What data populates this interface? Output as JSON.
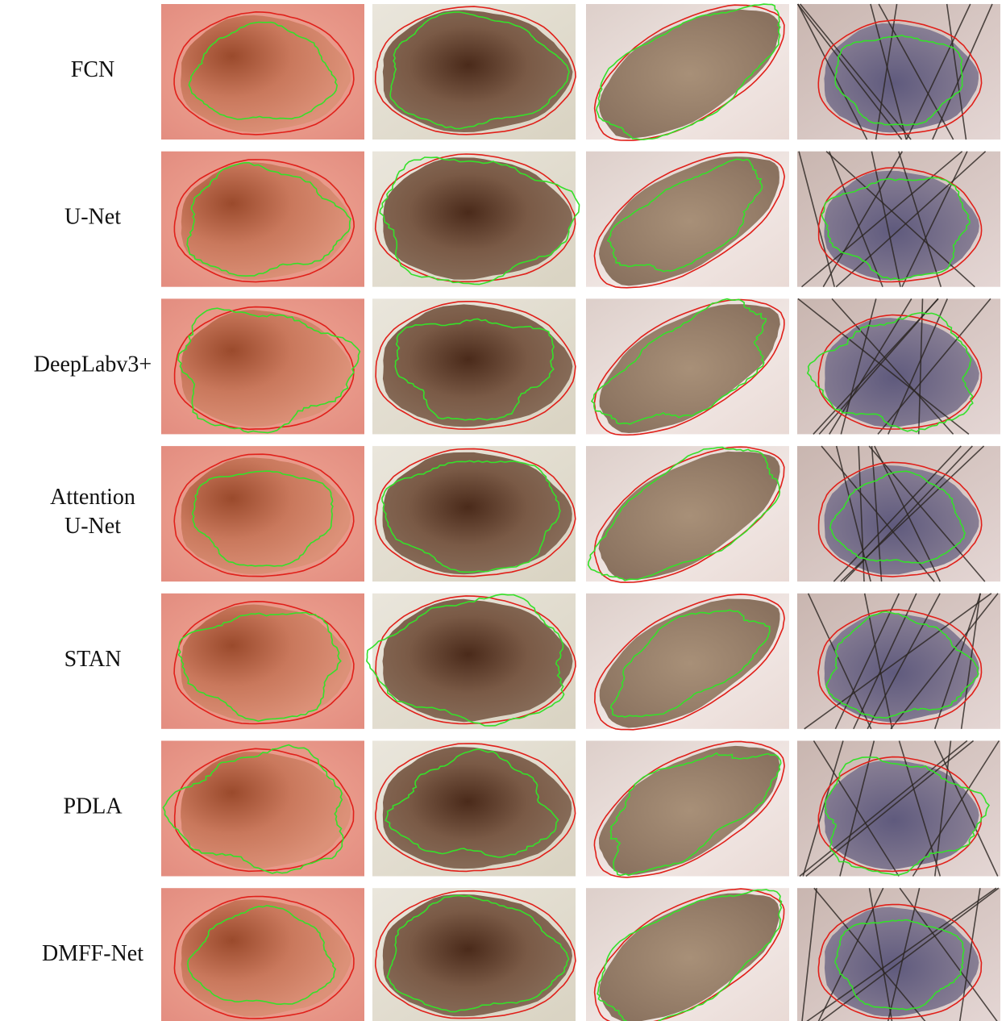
{
  "rows": [
    {
      "label": [
        "FCN"
      ]
    },
    {
      "label": [
        "U-Net"
      ]
    },
    {
      "label": [
        "DeepLabv3+"
      ]
    },
    {
      "label": [
        "Attention",
        "U-Net"
      ]
    },
    {
      "label": [
        "STAN"
      ]
    },
    {
      "label": [
        "PDLA"
      ]
    },
    {
      "label": [
        "DMFF-Net"
      ]
    }
  ]
}
